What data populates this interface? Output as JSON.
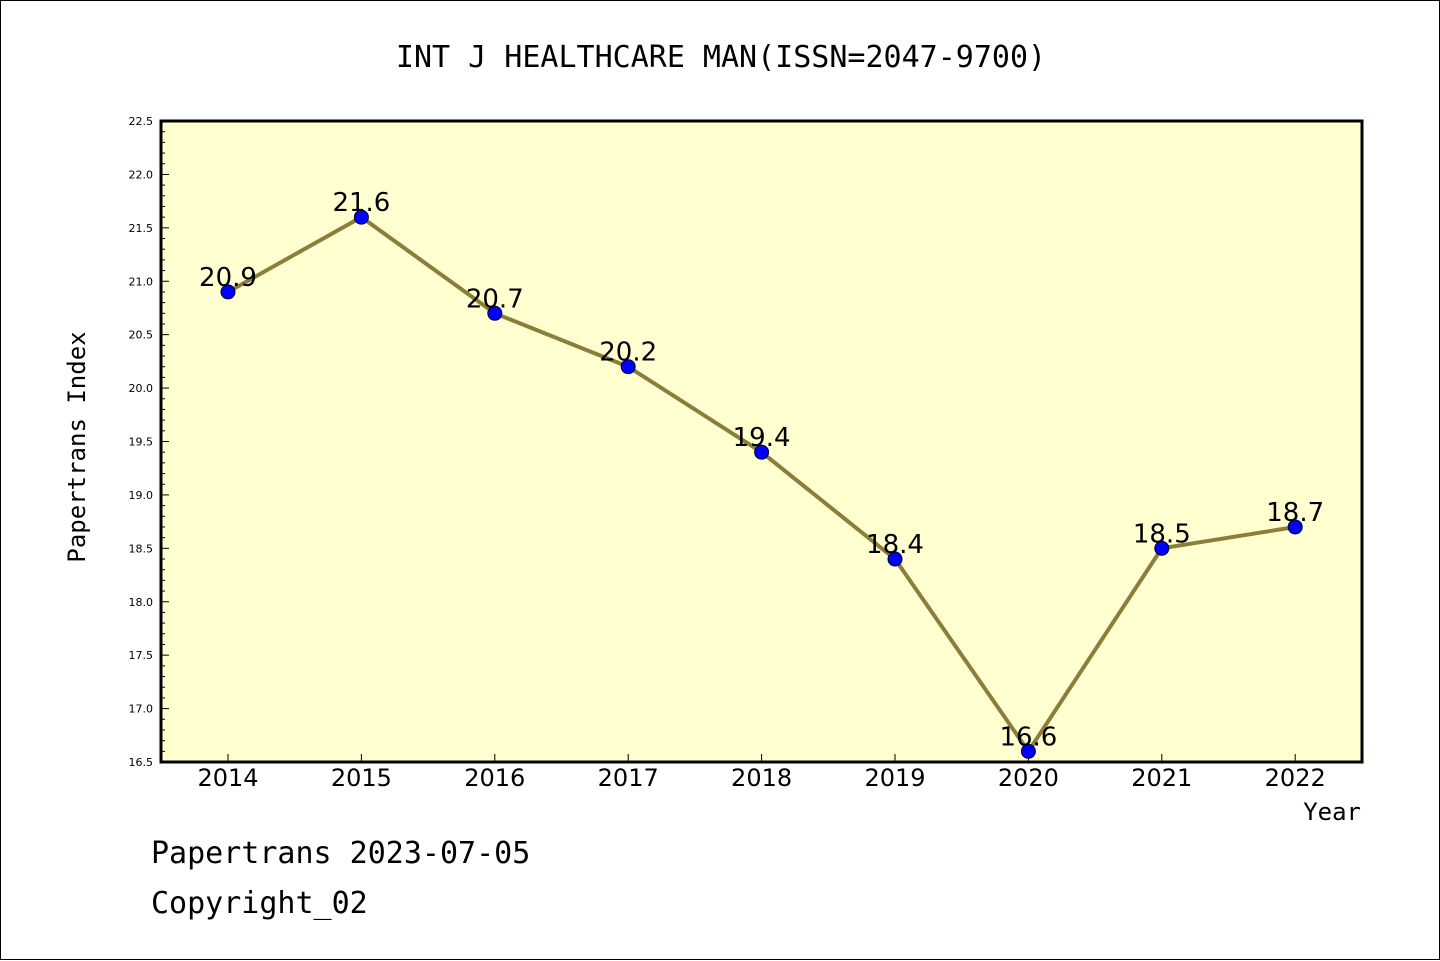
{
  "chart_data": {
    "type": "line",
    "title": "INT J HEALTHCARE MAN(ISSN=2047-9700)",
    "xlabel": "Year",
    "ylabel": "Papertrans Index",
    "categories": [
      "2014",
      "2015",
      "2016",
      "2017",
      "2018",
      "2019",
      "2020",
      "2021",
      "2022"
    ],
    "values": [
      20.9,
      21.6,
      20.7,
      20.2,
      19.4,
      18.4,
      16.6,
      18.5,
      18.7
    ],
    "data_labels": [
      "20.9",
      "21.6",
      "20.7",
      "20.2",
      "19.4",
      "18.4",
      "16.6",
      "18.5",
      "18.7"
    ],
    "ylim": [
      16.5,
      22.5
    ],
    "yticks": [
      "16.5",
      "17.0",
      "17.5",
      "18.0",
      "18.5",
      "19.0",
      "19.5",
      "20.0",
      "20.5",
      "21.0",
      "21.5",
      "22.0",
      "22.5"
    ],
    "grid": false,
    "colors": {
      "plot_background": "#ffffd0",
      "line": "#8b7d3a",
      "marker": "#0000ff"
    }
  },
  "footer": {
    "date_line": "Papertrans 2023-07-05",
    "copyright": "Copyright_02"
  }
}
